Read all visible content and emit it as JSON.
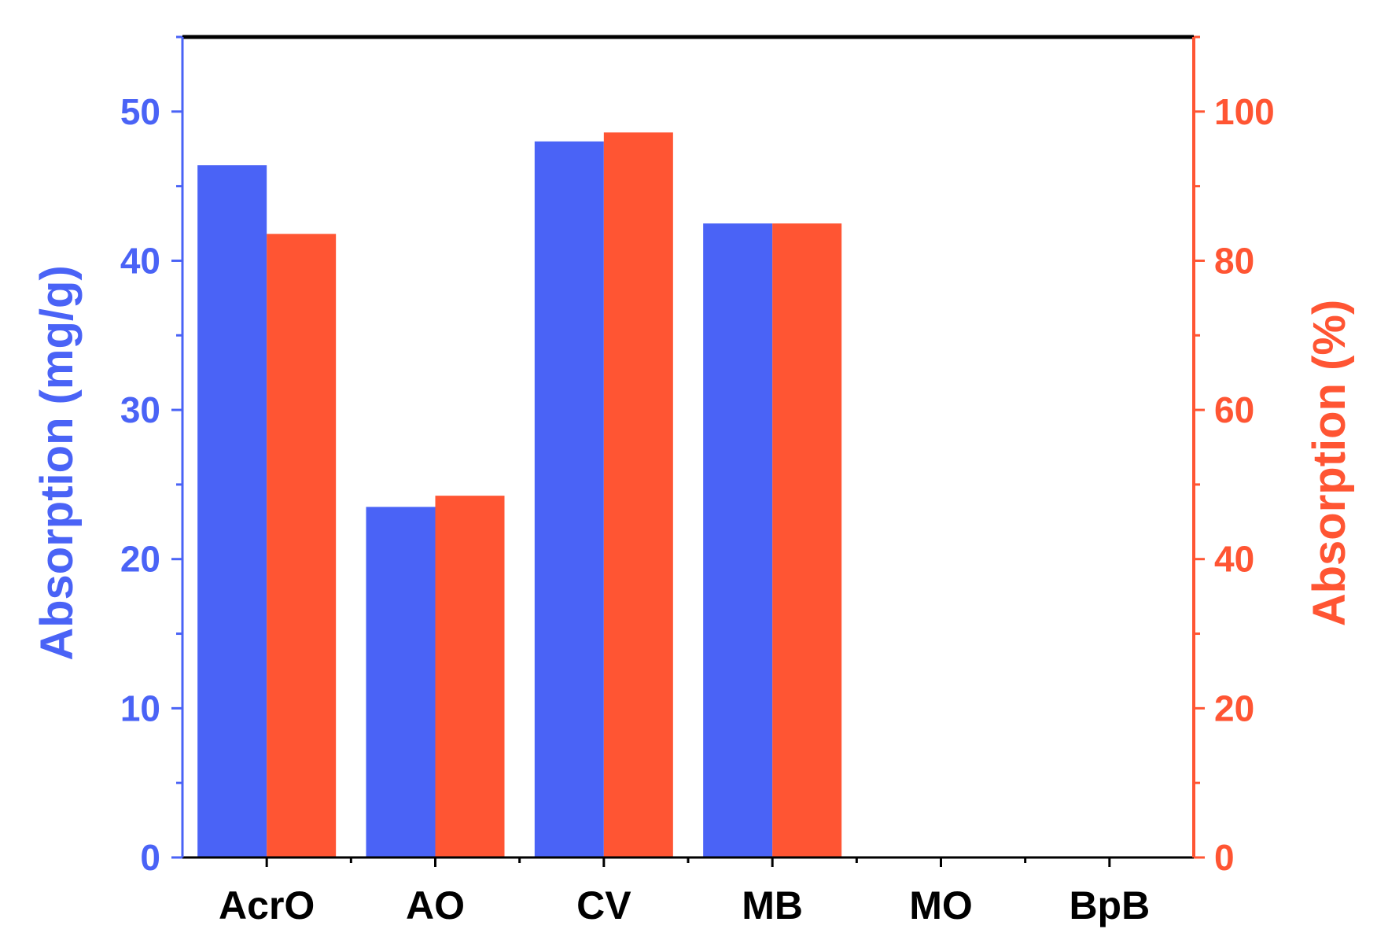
{
  "chart_data": {
    "type": "bar",
    "categories": [
      "AcrO",
      "AO",
      "CV",
      "MB",
      "MO",
      "BpB"
    ],
    "series": [
      {
        "axis": "left",
        "color": "#4a63f6",
        "values": [
          46.4,
          23.5,
          48.0,
          42.5,
          0,
          0
        ]
      },
      {
        "axis": "right",
        "color": "#ff5533",
        "values": [
          83.6,
          48.5,
          97.2,
          85.0,
          0,
          0
        ]
      }
    ],
    "ylabel_left": "Absorption (mg/g)",
    "ylabel_right": "Absorption (%)",
    "ylim_left": [
      0,
      55
    ],
    "ylim_right": [
      0,
      110
    ],
    "yticks_left": [
      "0",
      "10",
      "20",
      "30",
      "40",
      "50"
    ],
    "yticks_right": [
      "0",
      "20",
      "40",
      "60",
      "80",
      "100"
    ],
    "colors": {
      "left_axis": "#4a63f6",
      "right_axis": "#ff5533",
      "frame": "#000000"
    },
    "grid": false
  }
}
